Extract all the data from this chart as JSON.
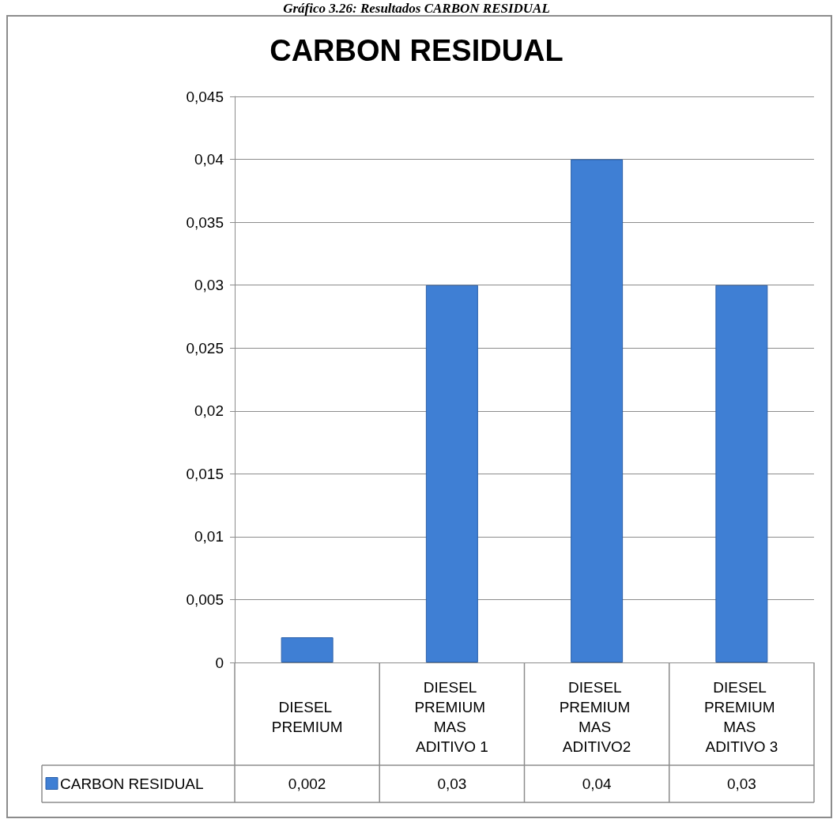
{
  "chart_data": {
    "type": "bar",
    "title": "CARBON RESIDUAL",
    "annotations": [
      "Gráfico 3.26: Resultados CARBON RESIDUAL"
    ],
    "categories": [
      "DIESEL PREMIUM",
      "DIESEL PREMIUM MAS ADITIVO 1",
      "DIESEL PREMIUM MAS ADITIVO2",
      "DIESEL PREMIUM MAS ADITIVO 3"
    ],
    "series": [
      {
        "name": "CARBON RESIDUAL",
        "color": "#3f7fd4",
        "values": [
          0.002,
          0.03,
          0.04,
          0.03
        ],
        "value_labels": [
          "0,002",
          "0,03",
          "0,04",
          "0,03"
        ]
      }
    ],
    "ylim": [
      0,
      0.045
    ],
    "yticks": [
      {
        "value": 0,
        "label": "0"
      },
      {
        "value": 0.005,
        "label": "0,005"
      },
      {
        "value": 0.01,
        "label": "0,01"
      },
      {
        "value": 0.015,
        "label": "0,015"
      },
      {
        "value": 0.02,
        "label": "0,02"
      },
      {
        "value": 0.025,
        "label": "0,025"
      },
      {
        "value": 0.03,
        "label": "0,03"
      },
      {
        "value": 0.035,
        "label": "0,035"
      },
      {
        "value": 0.04,
        "label": "0,04"
      },
      {
        "value": 0.045,
        "label": "0,045"
      }
    ],
    "grid": "y",
    "legend": "bottom left"
  }
}
